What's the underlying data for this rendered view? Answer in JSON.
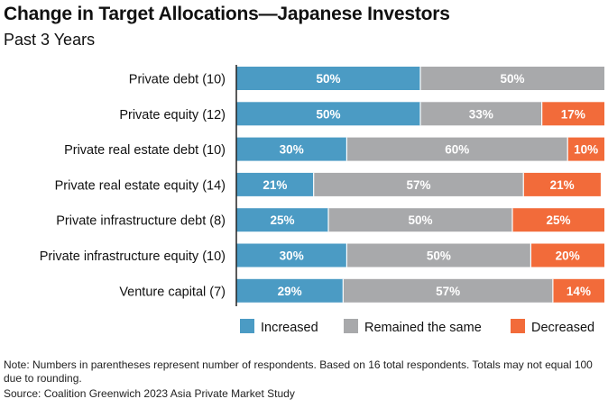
{
  "chart_data": {
    "type": "bar",
    "orientation": "horizontal",
    "stacked": true,
    "title": "Change in Target Allocations—Japanese Investors",
    "subtitle": "Past 3 Years",
    "categories": [
      "Private debt (10)",
      "Private equity (12)",
      "Private real estate debt (10)",
      "Private real estate equity (14)",
      "Private infrastructure debt (8)",
      "Private infrastructure equity (10)",
      "Venture capital (7)"
    ],
    "series": [
      {
        "name": "Increased",
        "color": "#4b9bc4",
        "values": [
          50,
          50,
          30,
          21,
          25,
          30,
          29
        ],
        "labels": [
          "50%",
          "50%",
          "30%",
          "21%",
          "25%",
          "30%",
          "29%"
        ]
      },
      {
        "name": "Remained the same",
        "color": "#a8a9ab",
        "values": [
          50,
          33,
          60,
          57,
          50,
          50,
          57
        ],
        "labels": [
          "50%",
          "33%",
          "60%",
          "57%",
          "50%",
          "50%",
          "57%"
        ]
      },
      {
        "name": "Decreased",
        "color": "#f26b3a",
        "values": [
          0,
          17,
          10,
          21,
          25,
          20,
          14
        ],
        "labels": [
          "",
          "17%",
          "10%",
          "21%",
          "25%",
          "20%",
          "14%"
        ]
      }
    ],
    "xlim": [
      0,
      100
    ],
    "grid": false,
    "legend_position": "bottom"
  },
  "note": "Note: Numbers in parentheses represent number of respondents. Based on 16 total respondents. Totals may not equal 100 due to rounding.",
  "source": "Source: Coalition Greenwich 2023 Asia Private Market Study"
}
